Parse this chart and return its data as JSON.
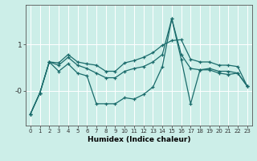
{
  "xlabel": "Humidex (Indice chaleur)",
  "bg_color": "#cceee8",
  "line_color": "#1a6b6b",
  "grid_color": "#ffffff",
  "x_values": [
    0,
    1,
    2,
    3,
    4,
    5,
    6,
    7,
    8,
    9,
    10,
    11,
    12,
    13,
    14,
    15,
    16,
    17,
    18,
    19,
    20,
    21,
    22,
    23
  ],
  "line_top": [
    -0.5,
    -0.05,
    0.62,
    0.6,
    0.78,
    0.62,
    0.58,
    0.55,
    0.42,
    0.42,
    0.6,
    0.65,
    0.72,
    0.82,
    0.98,
    1.08,
    1.1,
    0.68,
    0.62,
    0.62,
    0.55,
    0.55,
    0.52,
    0.1
  ],
  "line_mid": [
    -0.5,
    -0.05,
    0.62,
    0.55,
    0.72,
    0.55,
    0.48,
    0.38,
    0.28,
    0.28,
    0.42,
    0.48,
    0.52,
    0.62,
    0.78,
    1.55,
    0.78,
    0.48,
    0.45,
    0.48,
    0.42,
    0.42,
    0.38,
    0.1
  ],
  "line_bot": [
    -0.5,
    -0.05,
    0.62,
    0.42,
    0.58,
    0.38,
    0.32,
    -0.28,
    -0.28,
    -0.28,
    -0.15,
    -0.18,
    -0.08,
    0.08,
    0.52,
    1.55,
    0.68,
    -0.28,
    0.45,
    0.45,
    0.38,
    0.35,
    0.38,
    0.1
  ],
  "ylim": [
    -0.75,
    1.85
  ],
  "xlim": [
    -0.5,
    23.5
  ],
  "ytick_vals": [
    0,
    1
  ],
  "ytick_labels": [
    "-0",
    "1"
  ],
  "xtick_fontsize": 5.0,
  "ytick_fontsize": 6.5,
  "xlabel_fontsize": 6.5
}
